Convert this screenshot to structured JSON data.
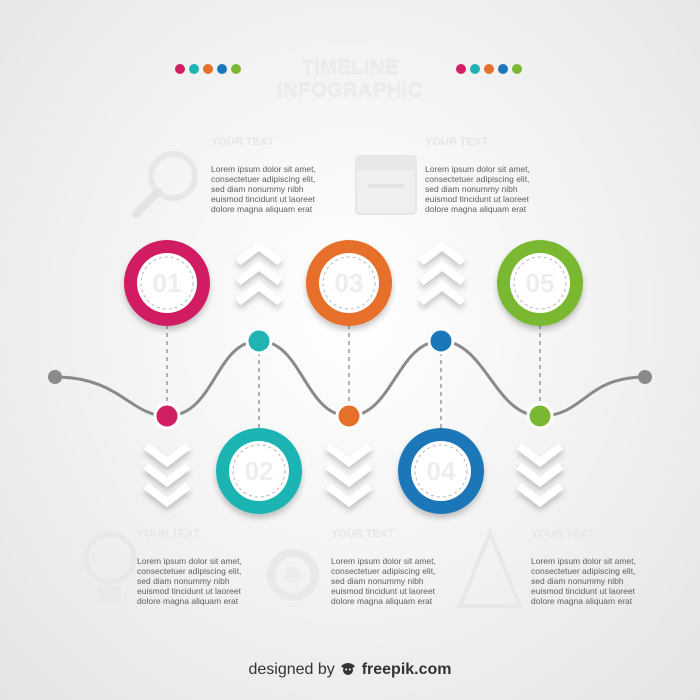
{
  "header": {
    "title": "TIMELINE INFOGRAPHIC",
    "dot_colors": [
      "#d11f63",
      "#1fb4b3",
      "#e6702a",
      "#1b77b9",
      "#7ab833"
    ]
  },
  "colors": {
    "pink": "#d11f63",
    "teal": "#1fb4b3",
    "orange": "#e6702a",
    "blue": "#1b77b9",
    "green": "#7ab833",
    "line": "#8a8a8a"
  },
  "steps": [
    {
      "number": "01",
      "color": "#d11f63"
    },
    {
      "number": "02",
      "color": "#1fb4b3"
    },
    {
      "number": "03",
      "color": "#e6702a"
    },
    {
      "number": "04",
      "color": "#1b77b9"
    },
    {
      "number": "05",
      "color": "#7ab833"
    }
  ],
  "text_blocks": [
    {
      "heading": "YOUR TEXT",
      "body": "Lorem ipsum dolor sit amet, consectetuer adipiscing elit, sed diam nonummy nibh euismod tincidunt ut laoreet dolore magna aliquam erat",
      "icon": "magnifier-icon"
    },
    {
      "heading": "YOUR TEXT",
      "body": "Lorem ipsum dolor sit amet, consectetuer adipiscing elit, sed diam nonummy nibh euismod tincidunt ut laoreet dolore magna aliquam erat",
      "icon": "calendar-icon"
    },
    {
      "heading": "YOUR TEXT",
      "body": "Lorem ipsum dolor sit amet, consectetuer adipiscing elit, sed diam nonummy nibh euismod tincidunt ut laoreet dolore magna aliquam erat",
      "icon": "lightbulb-icon"
    },
    {
      "heading": "YOUR TEXT",
      "body": "Lorem ipsum dolor sit amet, consectetuer adipiscing elit, sed diam nonummy nibh euismod tincidunt ut laoreet dolore magna aliquam erat",
      "icon": "gear-icon"
    },
    {
      "heading": "YOUR TEXT",
      "body": "Lorem ipsum dolor sit amet, consectetuer adipiscing elit, sed diam nonummy nibh euismod tincidunt ut laoreet dolore magna aliquam erat",
      "icon": "pyramid-icon"
    }
  ],
  "credit": {
    "prefix": "designed by",
    "brand": "freepik.com",
    "icon": "freepik-logo-icon"
  }
}
